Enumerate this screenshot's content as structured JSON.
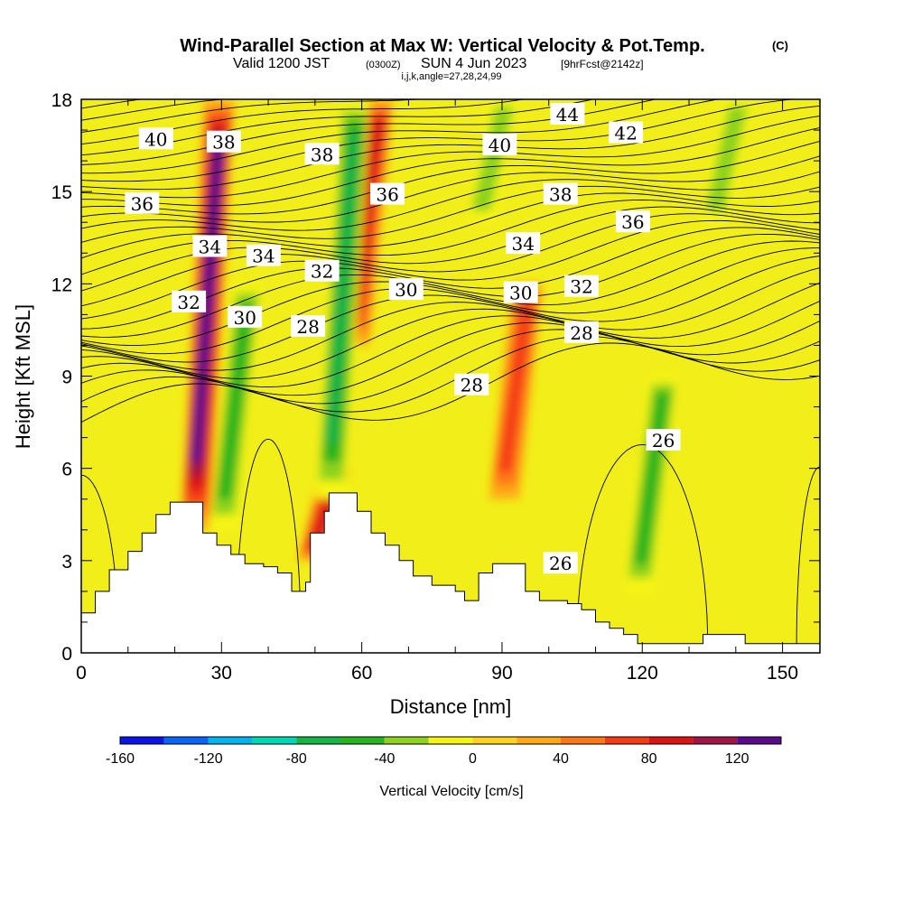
{
  "chart_data": {
    "type": "contour_cross_section",
    "title": "Wind-Parallel Section at Max W: Vertical Velocity & Pot.Temp.",
    "title_mark": "(C)",
    "subtitle_valid": "Valid 1200 JST",
    "subtitle_utc": "(0300Z)",
    "subtitle_date": "SUN 4 Jun 2023",
    "subtitle_fcst": "[9hrFcst@2142z]",
    "subtitle_indices": "i,j,k,angle=27,28,24,99",
    "xlabel": "Distance [nm]",
    "ylabel": "Height [Kft MSL]",
    "xlim": [
      0,
      158
    ],
    "ylim": [
      0,
      18
    ],
    "x_ticks": [
      "0",
      "30",
      "60",
      "90",
      "120",
      "150"
    ],
    "x_tick_values": [
      0,
      30,
      60,
      90,
      120,
      150
    ],
    "y_ticks": [
      "0",
      "3",
      "6",
      "9",
      "12",
      "15",
      "18"
    ],
    "y_tick_values": [
      0,
      3,
      6,
      9,
      12,
      15,
      18
    ],
    "colorbar_label": "Vertical Velocity [cm/s]",
    "colorbar_ticks": [
      "-160",
      "-120",
      "-80",
      "-40",
      "0",
      "40",
      "80",
      "120"
    ],
    "colorbar_tick_values": [
      -160,
      -120,
      -80,
      -40,
      0,
      40,
      80,
      120
    ],
    "colorbar_range": [
      -160,
      140
    ],
    "colorbar_colors": [
      "#0a14e6",
      "#0a64f5",
      "#00b4f0",
      "#00d7b4",
      "#14b446",
      "#28b41e",
      "#8cd21e",
      "#f5f514",
      "#ffd21e",
      "#ffaa14",
      "#ff7814",
      "#f53c14",
      "#dc1414",
      "#a01446",
      "#5a0a8c"
    ],
    "vertical_velocity_field_background": "0 to 20 cm/s",
    "updraft_cores": [
      {
        "x": 27,
        "height_range": [
          4,
          18
        ],
        "peak_cm_s": 120
      },
      {
        "x": 61,
        "height_range": [
          10,
          18
        ],
        "peak_cm_s": 80
      },
      {
        "x": 52,
        "height_range": [
          3,
          6
        ],
        "peak_cm_s": 80
      },
      {
        "x": 93,
        "height_range": [
          5,
          12
        ],
        "peak_cm_s": 60
      }
    ],
    "downdraft_cores": [
      {
        "x": 33,
        "height_range": [
          4,
          12
        ],
        "peak_cm_s": -60
      },
      {
        "x": 56,
        "height_range": [
          5,
          18
        ],
        "peak_cm_s": -80
      },
      {
        "x": 122,
        "height_range": [
          2,
          9
        ],
        "peak_cm_s": -60
      },
      {
        "x": 88,
        "height_range": [
          14,
          18
        ],
        "peak_cm_s": -40
      },
      {
        "x": 138,
        "height_range": [
          14,
          18
        ],
        "peak_cm_s": -40
      }
    ],
    "potential_temperature_contours": {
      "labels": [
        {
          "text": "40",
          "x": 16,
          "y": 16.7
        },
        {
          "text": "38",
          "x": 30.5,
          "y": 16.6
        },
        {
          "text": "38",
          "x": 51.5,
          "y": 16.2
        },
        {
          "text": "36",
          "x": 65.5,
          "y": 14.9
        },
        {
          "text": "40",
          "x": 89.5,
          "y": 16.5
        },
        {
          "text": "44",
          "x": 104,
          "y": 17.5
        },
        {
          "text": "42",
          "x": 116.5,
          "y": 16.9
        },
        {
          "text": "36",
          "x": 13,
          "y": 14.6
        },
        {
          "text": "38",
          "x": 102.5,
          "y": 14.9
        },
        {
          "text": "36",
          "x": 118,
          "y": 14.0
        },
        {
          "text": "34",
          "x": 27.5,
          "y": 13.2
        },
        {
          "text": "34",
          "x": 39,
          "y": 12.9
        },
        {
          "text": "32",
          "x": 51.5,
          "y": 12.4
        },
        {
          "text": "34",
          "x": 94.5,
          "y": 13.3
        },
        {
          "text": "32",
          "x": 23,
          "y": 11.4
        },
        {
          "text": "30",
          "x": 35,
          "y": 10.9
        },
        {
          "text": "28",
          "x": 48.5,
          "y": 10.6
        },
        {
          "text": "30",
          "x": 69.5,
          "y": 11.8
        },
        {
          "text": "30",
          "x": 94,
          "y": 11.7
        },
        {
          "text": "32",
          "x": 107,
          "y": 11.9
        },
        {
          "text": "28",
          "x": 107,
          "y": 10.4
        },
        {
          "text": "28",
          "x": 83.5,
          "y": 8.7
        },
        {
          "text": "26",
          "x": 124.5,
          "y": 6.9
        },
        {
          "text": "26",
          "x": 102.5,
          "y": 2.9
        }
      ]
    },
    "terrain_kft": [
      [
        0,
        1.3
      ],
      [
        3,
        2.0
      ],
      [
        6,
        2.7
      ],
      [
        10,
        3.3
      ],
      [
        13,
        3.9
      ],
      [
        16,
        4.5
      ],
      [
        19,
        4.9
      ],
      [
        25,
        4.9
      ],
      [
        26,
        3.9
      ],
      [
        29,
        3.5
      ],
      [
        32,
        3.2
      ],
      [
        35,
        2.9
      ],
      [
        39,
        2.8
      ],
      [
        42,
        2.6
      ],
      [
        45,
        2.0
      ],
      [
        48,
        2.3
      ],
      [
        49,
        3.9
      ],
      [
        52,
        4.6
      ],
      [
        53,
        5.2
      ],
      [
        58,
        5.2
      ],
      [
        59,
        4.6
      ],
      [
        62,
        3.9
      ],
      [
        65,
        3.5
      ],
      [
        68,
        3.0
      ],
      [
        71,
        2.5
      ],
      [
        75,
        2.2
      ],
      [
        80,
        2.0
      ],
      [
        82,
        1.7
      ],
      [
        85,
        2.6
      ],
      [
        88,
        2.9
      ],
      [
        94,
        2.9
      ],
      [
        95,
        2.0
      ],
      [
        98,
        1.7
      ],
      [
        104,
        1.6
      ],
      [
        107,
        1.4
      ],
      [
        110,
        1.0
      ],
      [
        113,
        0.8
      ],
      [
        116,
        0.6
      ],
      [
        119,
        0.3
      ],
      [
        128,
        0.3
      ],
      [
        133,
        0.6
      ],
      [
        142,
        0.3
      ],
      [
        159,
        0.3
      ]
    ]
  }
}
